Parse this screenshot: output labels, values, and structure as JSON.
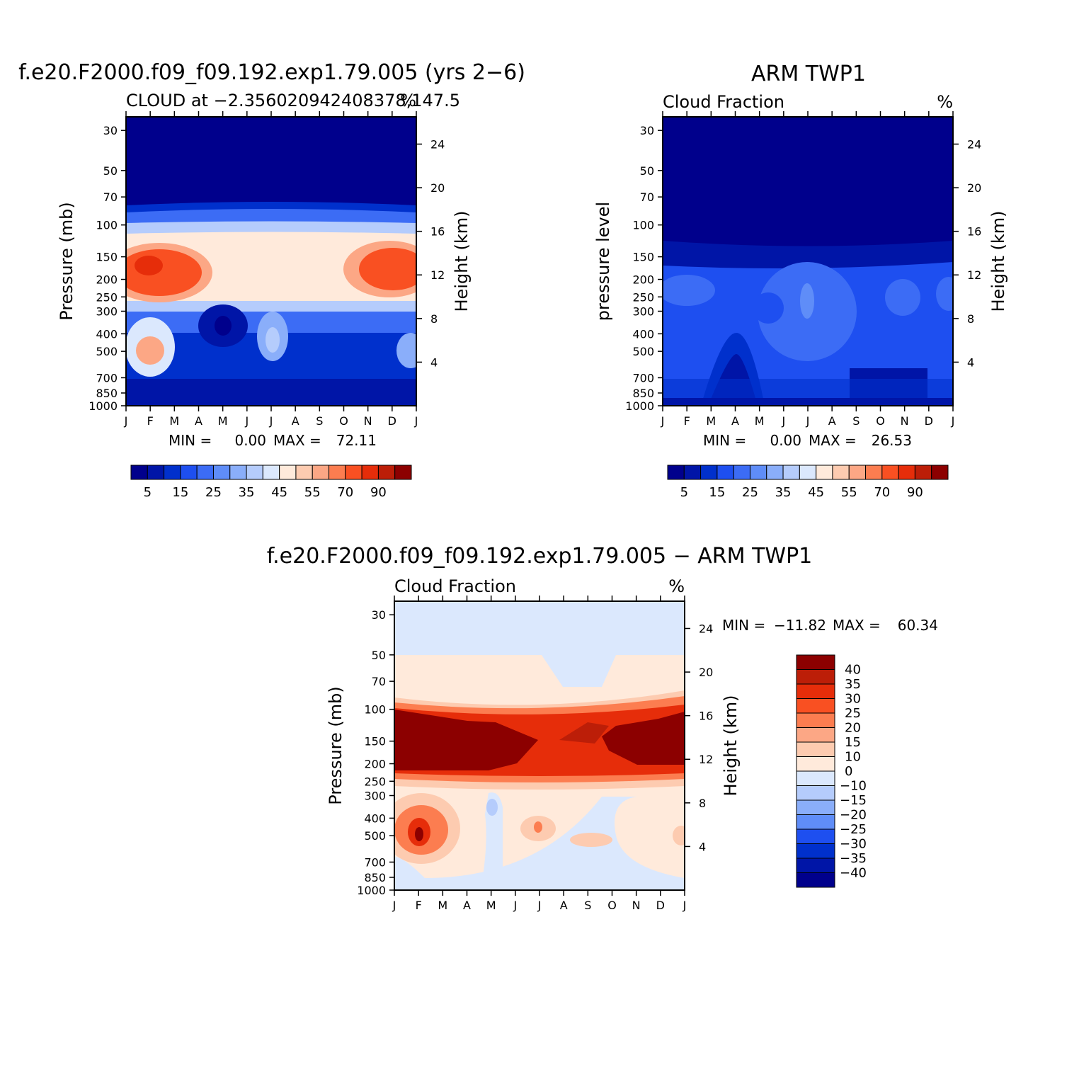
{
  "colors": {
    "seq": [
      "#00008c",
      "#0015a7",
      "#0030cc",
      "#1e4ff0",
      "#3c6cf5",
      "#5f8df8",
      "#8aaefa",
      "#b5ccfc",
      "#dbe8fd",
      "#ffeadb",
      "#fdcbb0",
      "#fca785",
      "#fc7d50",
      "#f95022",
      "#e62d0a",
      "#bc1e08",
      "#8c0000"
    ],
    "diff": [
      "#00008c",
      "#0015a7",
      "#0030cc",
      "#1e4ff0",
      "#5f8df8",
      "#8aaefa",
      "#b5ccfc",
      "#dbe8fd",
      "#ffeadb",
      "#fdcbb0",
      "#fca785",
      "#fc7d50",
      "#f95022",
      "#e62d0a",
      "#bc1e08",
      "#8c0000"
    ]
  },
  "colorbar_seq_labels": [
    "5",
    "15",
    "25",
    "35",
    "45",
    "55",
    "70",
    "90"
  ],
  "colorbar_diff_labels": [
    "40",
    "35",
    "30",
    "25",
    "20",
    "15",
    "10",
    "0",
    "−10",
    "−15",
    "−20",
    "−25",
    "−30",
    "−35",
    "−40"
  ],
  "chart_data": [
    {
      "type": "heatmap",
      "title": "f.e20.F2000.f09_f09.192.exp1.79.005 (yrs 2−6)",
      "subtitle_left": "CLOUD at −2.356020942408378,147.5",
      "subtitle_right": "%",
      "ylabel": "Pressure (mb)",
      "ylabel_right": "Height (km)",
      "x": [
        "J",
        "F",
        "M",
        "A",
        "M",
        "J",
        "J",
        "A",
        "S",
        "O",
        "N",
        "D",
        "J"
      ],
      "y_ticks": [
        "30",
        "50",
        "70",
        "100",
        "150",
        "200",
        "250",
        "300",
        "400",
        "500",
        "700",
        "850",
        "1000"
      ],
      "y_right_ticks": [
        "24",
        "20",
        "16",
        "12",
        "8",
        "4"
      ],
      "min_label": "MIN =",
      "min_value": "0.00",
      "max_label": "MAX =",
      "max_value": "72.11"
    },
    {
      "type": "heatmap",
      "title": "ARM TWP1",
      "subtitle_left": "Cloud Fraction",
      "subtitle_right": "%",
      "ylabel": "pressure level",
      "ylabel_right": "Height (km)",
      "x": [
        "J",
        "F",
        "M",
        "A",
        "M",
        "J",
        "J",
        "A",
        "S",
        "O",
        "N",
        "D",
        "J"
      ],
      "y_ticks": [
        "30",
        "50",
        "70",
        "100",
        "150",
        "200",
        "250",
        "300",
        "400",
        "500",
        "700",
        "850",
        "1000"
      ],
      "y_right_ticks": [
        "24",
        "20",
        "16",
        "12",
        "8",
        "4"
      ],
      "min_label": "MIN =",
      "min_value": "0.00",
      "max_label": "MAX =",
      "max_value": "26.53"
    },
    {
      "type": "heatmap",
      "title": "f.e20.F2000.f09_f09.192.exp1.79.005 − ARM TWP1",
      "subtitle_left": "Cloud Fraction",
      "subtitle_right": "%",
      "ylabel": "Pressure (mb)",
      "ylabel_right": "Height (km)",
      "x": [
        "J",
        "F",
        "M",
        "A",
        "M",
        "J",
        "J",
        "A",
        "S",
        "O",
        "N",
        "D",
        "J"
      ],
      "y_ticks": [
        "30",
        "50",
        "70",
        "100",
        "150",
        "200",
        "250",
        "300",
        "400",
        "500",
        "700",
        "850",
        "1000"
      ],
      "y_right_ticks": [
        "24",
        "20",
        "16",
        "12",
        "8",
        "4"
      ],
      "min_label": "MIN =",
      "min_value": "−11.82",
      "max_label": "MAX =",
      "max_value": "60.34"
    }
  ]
}
